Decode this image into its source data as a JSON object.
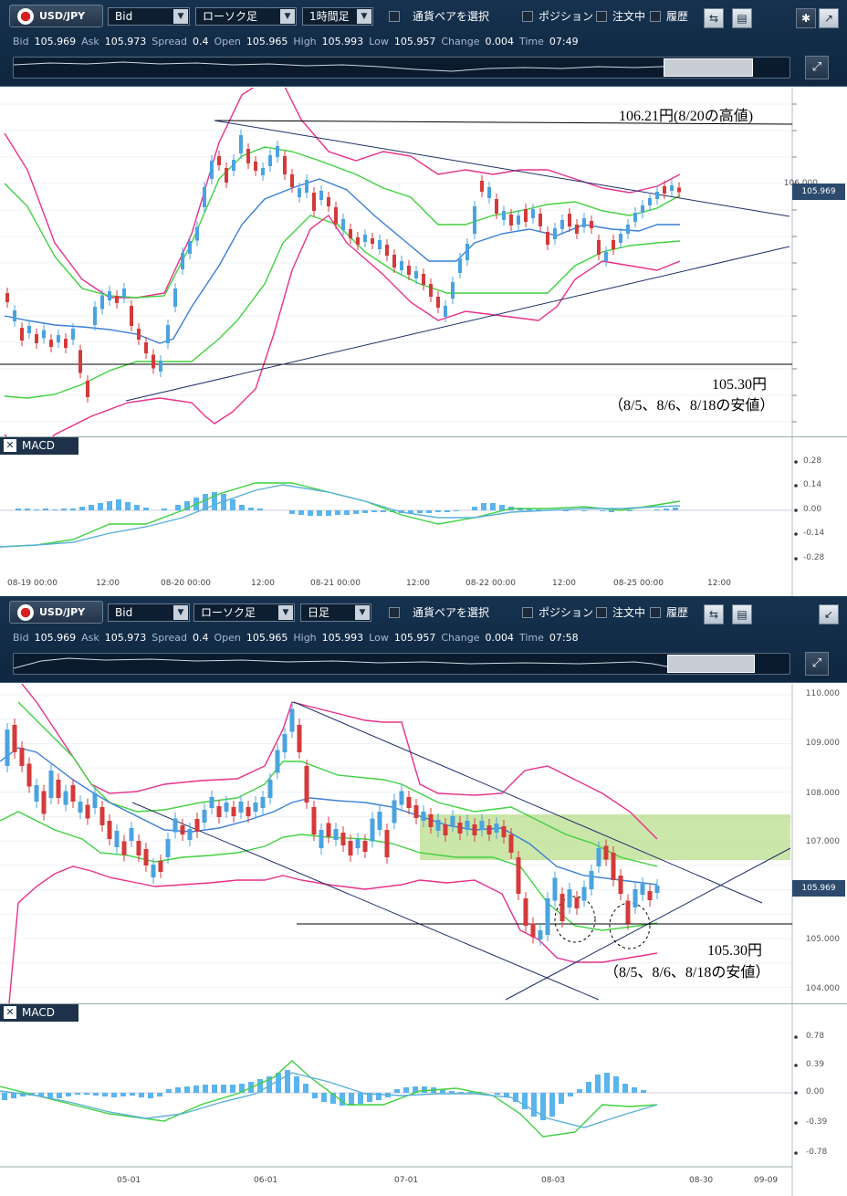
{
  "panels": [
    {
      "symbol": "USD/JPY",
      "price_type": "Bid",
      "chart_type": "ローソク足",
      "timeframe": "1時間足",
      "pair_select": "通貨ペアを選択",
      "positions": "ポジション",
      "orders": "注文中",
      "history": "履歴",
      "quote": {
        "bid_k": "Bid",
        "bid": "105.969",
        "ask_k": "Ask",
        "ask": "105.973",
        "spread_k": "Spread",
        "spread": "0.4",
        "open_k": "Open",
        "open": "105.965",
        "high_k": "High",
        "high": "105.993",
        "low_k": "Low",
        "low": "105.957",
        "change_k": "Change",
        "change": "0.004",
        "time_k": "Time",
        "time": "07:49"
      },
      "price_tag": "105.969",
      "price_ticks": [
        "106.000"
      ],
      "macd_label": "MACD",
      "macd_ticks": [
        "0.28",
        "0.14",
        "0.00",
        "-0.14",
        "-0.28"
      ],
      "x_ticks": [
        "08-19 00:00",
        "12:00",
        "08-20 00:00",
        "12:00",
        "08-21 00:00",
        "12:00",
        "08-22 00:00",
        "12:00",
        "08-25 00:00",
        "12:00"
      ],
      "annotations": {
        "high": "106.21円(8/20の高値)",
        "low_price": "105.30円",
        "low_dates": "（8/5、8/6、8/18の安値）"
      }
    },
    {
      "symbol": "USD/JPY",
      "price_type": "Bid",
      "chart_type": "ローソク足",
      "timeframe": "日足",
      "pair_select": "通貨ペアを選択",
      "positions": "ポジション",
      "orders": "注文中",
      "history": "履歴",
      "quote": {
        "bid_k": "Bid",
        "bid": "105.969",
        "ask_k": "Ask",
        "ask": "105.973",
        "spread_k": "Spread",
        "spread": "0.4",
        "open_k": "Open",
        "open": "105.965",
        "high_k": "High",
        "high": "105.993",
        "low_k": "Low",
        "low": "105.957",
        "change_k": "Change",
        "change": "0.004",
        "time_k": "Time",
        "time": "07:58"
      },
      "price_tag": "105.969",
      "price_ticks": [
        "110.000",
        "109.000",
        "108.000",
        "107.000",
        "105.000",
        "104.000"
      ],
      "macd_label": "MACD",
      "macd_ticks": [
        "0.78",
        "0.39",
        "0.00",
        "-0.39",
        "-0.78"
      ],
      "x_ticks": [
        "05-01",
        "06-01",
        "07-01",
        "08-03",
        "08-30",
        "09-09"
      ],
      "annotations": {
        "low_price": "105.30円",
        "low_dates": "（8/5、8/6、8/18の安値）"
      }
    }
  ],
  "colors": {
    "toolbar": "#16324f",
    "bull": "#4aa3e0",
    "bear": "#d43a3a",
    "bb_outer": "#e8308a",
    "bb_inner": "#3fd13f",
    "ma": "#3a7fd6",
    "macd": "#3fd13f",
    "signal": "#5ab0d8",
    "hist": "#5ab4ee",
    "trend": "#1d2f6b",
    "zone": "#b5dc85"
  },
  "icons": [
    "us-flag-icon",
    "gear-icon",
    "expand-icon",
    "collapse-icon",
    "layout-icon",
    "window-icon",
    "navigator-expand-icon",
    "close-icon"
  ]
}
